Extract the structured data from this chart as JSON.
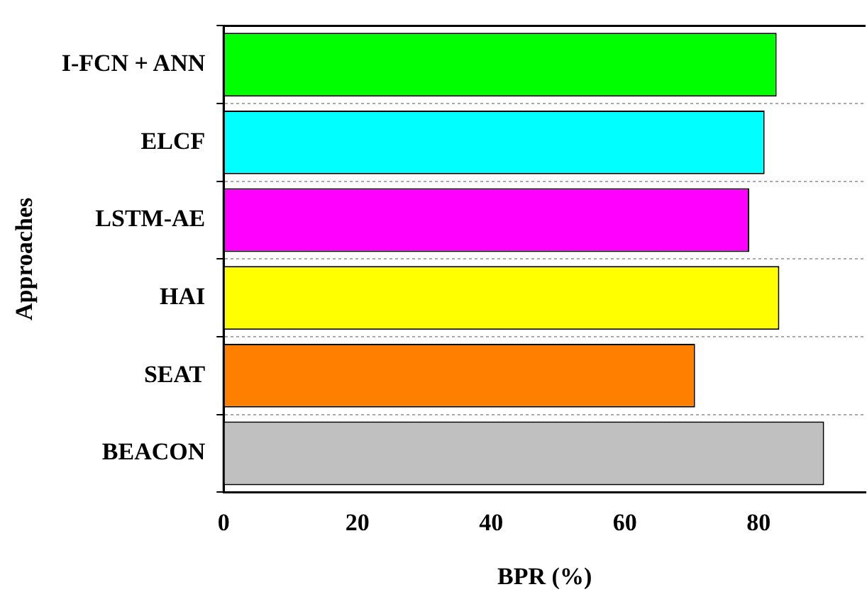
{
  "chart_data": {
    "type": "bar",
    "orientation": "horizontal",
    "xlabel": "BPR (%)",
    "ylabel": "Approaches",
    "categories": [
      "I-FCN + ANN",
      "ELCF",
      "LSTM-AE",
      "HAI",
      "SEAT",
      "BEACON"
    ],
    "values": [
      82.7,
      80.9,
      78.6,
      83.1,
      70.5,
      89.8
    ],
    "colors": [
      "#00ff00",
      "#00ffff",
      "#ff00ff",
      "#ffff00",
      "#ff8000",
      "#c0c0c0"
    ],
    "xlim": [
      0,
      96
    ],
    "xticks": [
      0,
      20,
      40,
      60,
      80
    ],
    "grid": "y"
  }
}
